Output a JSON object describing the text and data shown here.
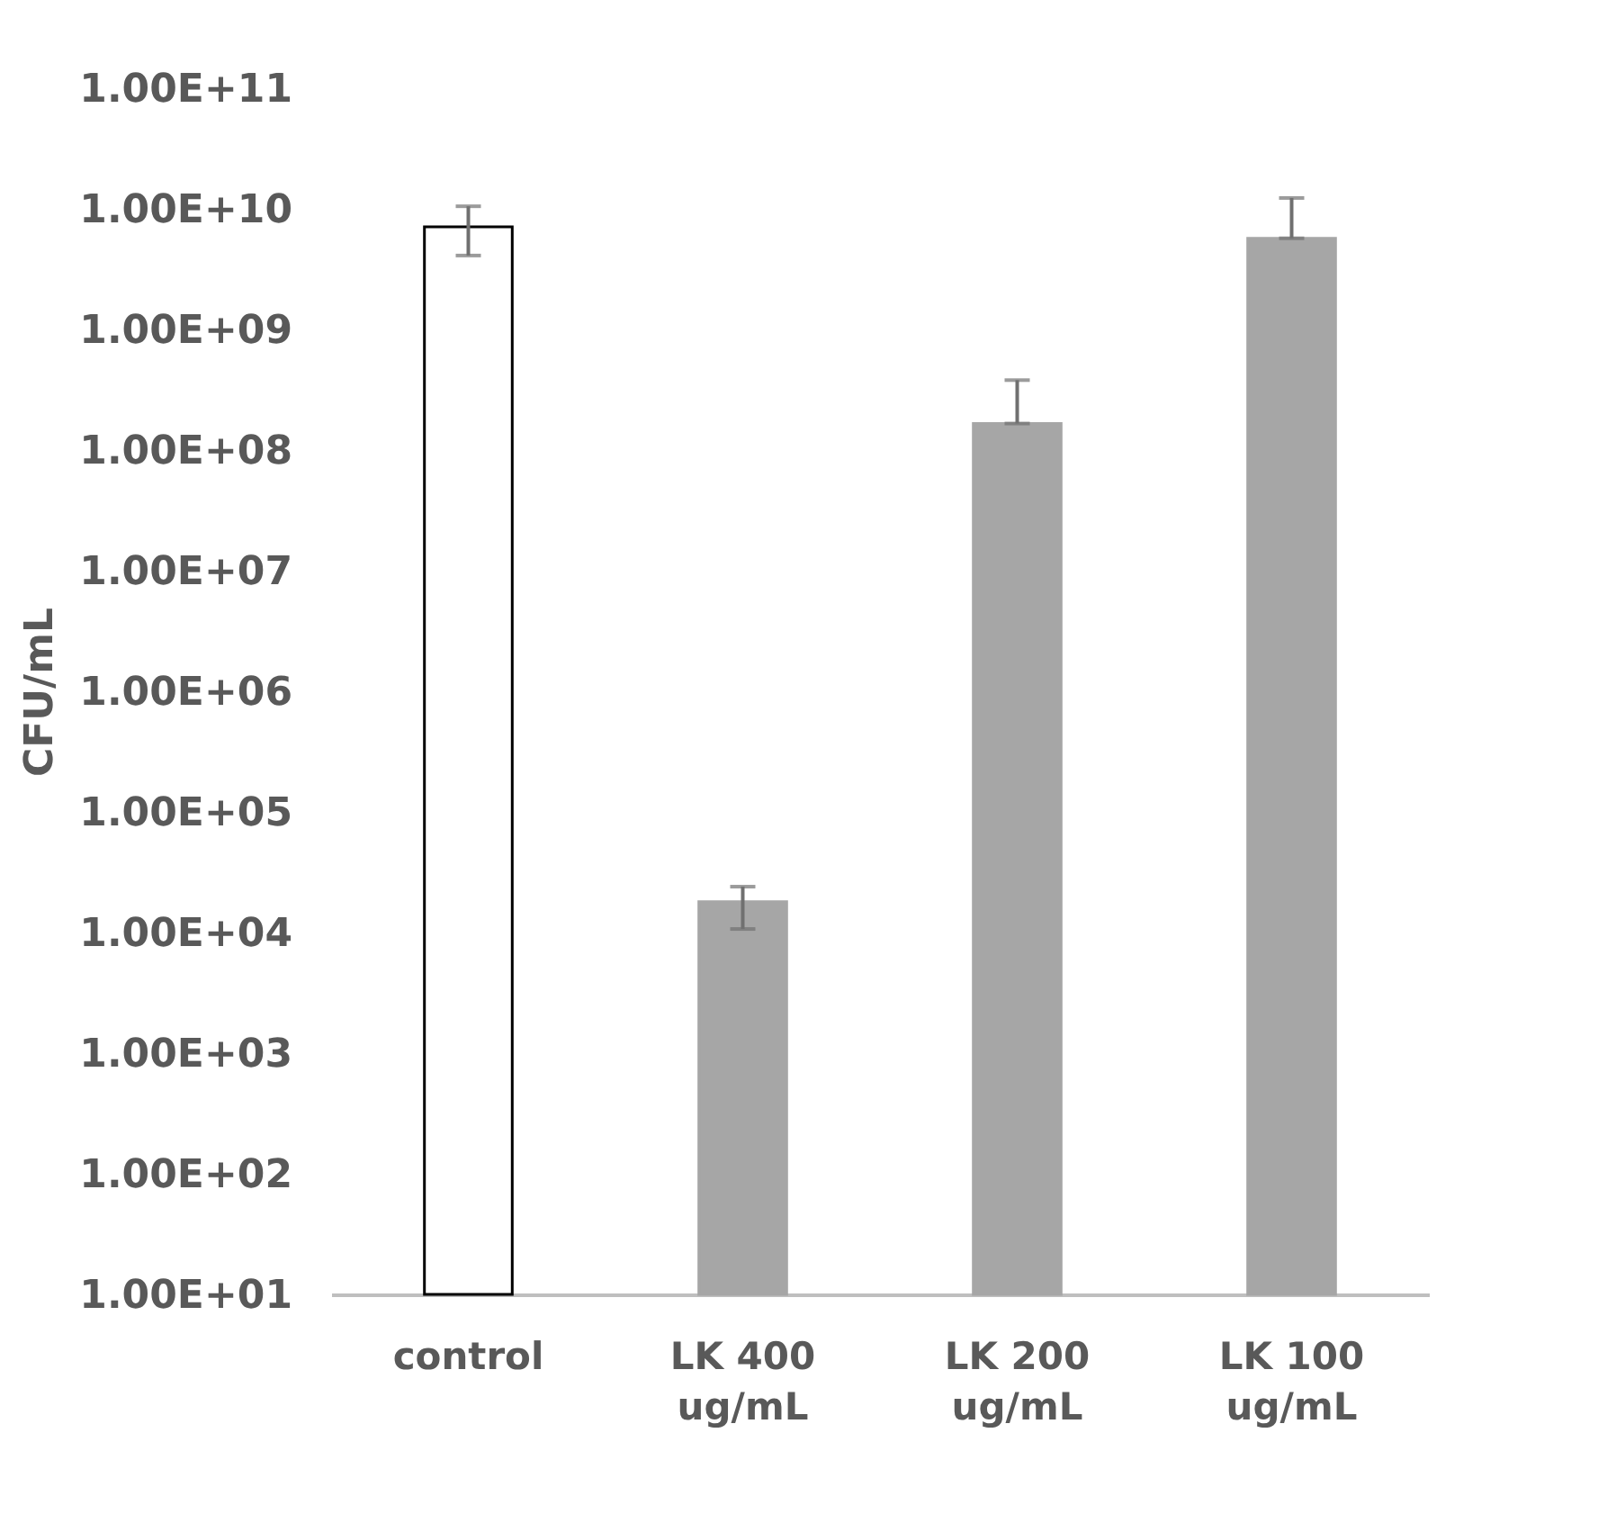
{
  "chart_data": {
    "type": "bar",
    "ylabel": "CFU/mL",
    "categories": [
      "control",
      "LK 400 ug/mL",
      "LK 200 ug/mL",
      "LK 100 ug/mL"
    ],
    "values": [
      7100000000.0,
      18000.0,
      166000000.0,
      5700000000.0
    ],
    "colors": [
      "#ffffff",
      "#a6a6a6",
      "#a6a6a6",
      "#a6a6a6"
    ],
    "errors": [
      [
        4100000000.0,
        10500000000.0
      ],
      [
        10700.0,
        24000.0
      ],
      [
        166000000.0,
        380000000.0
      ],
      [
        5700000000.0,
        12300000000.0
      ]
    ],
    "log": true,
    "ylim": [
      10,
      100000000000.0
    ],
    "yticks": [
      {
        "value": 10,
        "label": "1.00E+01"
      },
      {
        "value": 100,
        "label": "1.00E+02"
      },
      {
        "value": 1000,
        "label": "1.00E+03"
      },
      {
        "value": 10000,
        "label": "1.00E+04"
      },
      {
        "value": 100000,
        "label": "1.00E+05"
      },
      {
        "value": 1000000,
        "label": "1.00E+06"
      },
      {
        "value": 10000000,
        "label": "1.00E+07"
      },
      {
        "value": 100000000,
        "label": "1.00E+08"
      },
      {
        "value": 1000000000,
        "label": "1.00E+09"
      },
      {
        "value": 10000000000,
        "label": "1.00E+10"
      },
      {
        "value": 100000000000,
        "label": "1.00E+11"
      }
    ],
    "grid": false
  }
}
